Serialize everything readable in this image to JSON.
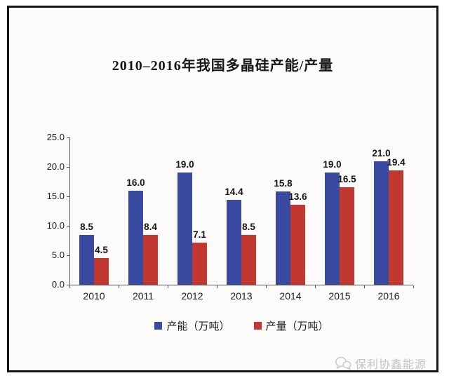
{
  "title": "2010–2016年我国多晶硅产能/产量",
  "chart_data": {
    "type": "bar",
    "title": "2010–2016年我国多晶硅产能/产量",
    "categories": [
      "2010",
      "2011",
      "2012",
      "2013",
      "2014",
      "2015",
      "2016"
    ],
    "series": [
      {
        "name": "产能（万吨）",
        "color": "#3A4AA1",
        "values": [
          8.5,
          16.0,
          19.0,
          14.4,
          15.8,
          19.0,
          21.0
        ],
        "labels": [
          "8.5",
          "16.0",
          "19.0",
          "14.4",
          "15.8",
          "19.0",
          "21.0"
        ]
      },
      {
        "name": "产量（万吨）",
        "color": "#C0382F",
        "values": [
          4.5,
          8.4,
          7.1,
          8.5,
          13.6,
          16.5,
          19.4
        ],
        "labels": [
          "4.5",
          "8.4",
          "7.1",
          "8.5",
          "13.6",
          "16.5",
          "19.4"
        ]
      }
    ],
    "xlabel": "",
    "ylabel": "",
    "ylim": [
      0,
      25
    ],
    "yticks": [
      0,
      5,
      10,
      15,
      20,
      25
    ],
    "ytick_labels": [
      "0.0",
      "5.0",
      "10.0",
      "15.0",
      "20.0",
      "25.0"
    ],
    "grid": false,
    "legend_position": "bottom",
    "value_labels_shown": true
  },
  "watermark": {
    "label": "保利协鑫能源",
    "icon": "wechat-chat-bubbles-icon"
  },
  "colors": {
    "frame_border": "#161616",
    "axis": "#5a5a5a",
    "text": "#1c1c1c",
    "watermark": "#c3c3c3"
  }
}
